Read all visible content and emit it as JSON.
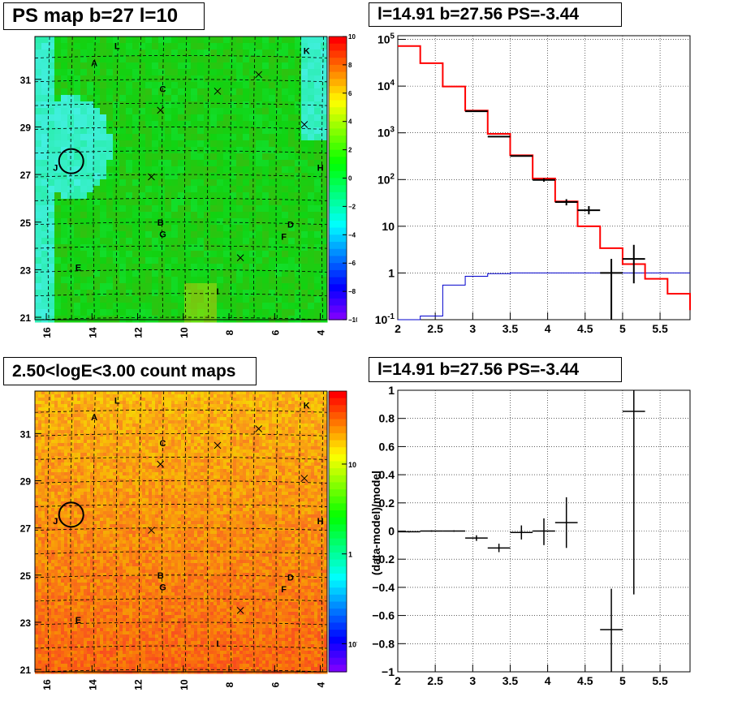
{
  "panels": {
    "ps_map": {
      "title": "PS map b=27 l=10"
    },
    "count_map": {
      "title": "2.50<logE<3.00 count maps"
    },
    "spectrum": {
      "title": "l=14.91 b=27.56 PS=-3.44"
    },
    "residual": {
      "title": "l=14.91 b=27.56 PS=-3.44"
    }
  },
  "chart_data": [
    {
      "type": "heatmap",
      "title": "PS map b=27 l=10",
      "x_ticks": [
        "16",
        "14",
        "12",
        "10",
        "8",
        "6",
        "4"
      ],
      "y_ticks": [
        "31",
        "29",
        "27",
        "25",
        "23",
        "21"
      ],
      "xlim": [
        16.5,
        3.7
      ],
      "ylim": [
        20.9,
        32.8
      ],
      "colorbar": {
        "min": -10,
        "max": 10,
        "ticks": [
          "10",
          "8",
          "6",
          "4",
          "2",
          "0",
          "−2",
          "−4",
          "−6",
          "−8",
          "−10"
        ]
      },
      "source_labels": [
        {
          "text": "L",
          "l": 12.9,
          "b": 32.4
        },
        {
          "text": "A",
          "l": 13.9,
          "b": 31.7
        },
        {
          "text": "K",
          "l": 4.6,
          "b": 32.2
        },
        {
          "text": "C",
          "l": 10.9,
          "b": 30.6
        },
        {
          "text": "J",
          "l": 15.6,
          "b": 27.3
        },
        {
          "text": "H",
          "l": 4.0,
          "b": 27.3
        },
        {
          "text": "B",
          "l": 11.0,
          "b": 25.0
        },
        {
          "text": "G",
          "l": 10.9,
          "b": 24.5
        },
        {
          "text": "D",
          "l": 5.3,
          "b": 24.9
        },
        {
          "text": "F",
          "l": 5.6,
          "b": 24.4
        },
        {
          "text": "E",
          "l": 14.6,
          "b": 23.1
        },
        {
          "text": "I",
          "l": 8.5,
          "b": 22.1
        }
      ],
      "markers": [
        {
          "l": 11.0,
          "b": 29.7
        },
        {
          "l": 8.5,
          "b": 30.5
        },
        {
          "l": 6.7,
          "b": 31.2
        },
        {
          "l": 4.7,
          "b": 29.1
        },
        {
          "l": 11.4,
          "b": 26.9
        },
        {
          "l": 7.5,
          "b": 23.5
        }
      ],
      "circle": {
        "l": 14.91,
        "b": 27.56
      }
    },
    {
      "type": "heatmap",
      "title": "2.50<logE<3.00 count maps",
      "x_ticks": [
        "16",
        "14",
        "12",
        "10",
        "8",
        "6",
        "4"
      ],
      "y_ticks": [
        "31",
        "29",
        "27",
        "25",
        "23",
        "21"
      ],
      "xlim": [
        16.5,
        3.7
      ],
      "ylim": [
        20.9,
        32.8
      ],
      "colorbar": {
        "scale": "log",
        "ticks": [
          "10",
          "1",
          "10^-1"
        ]
      }
    },
    {
      "type": "line",
      "title": "l=14.91 b=27.56 PS=-3.44",
      "x_ticks": [
        "2",
        "2.5",
        "3",
        "3.5",
        "4",
        "4.5",
        "5",
        "5.5"
      ],
      "y_ticks": [
        "10^-1",
        "1",
        "10",
        "10^2",
        "10^3",
        "10^4",
        "10^5"
      ],
      "xlim": [
        2.0,
        5.9
      ],
      "ylim": [
        0.1,
        120000
      ],
      "log_y": true,
      "grid": true,
      "model_edges": [
        2.0,
        2.3,
        2.6,
        2.9,
        3.2,
        3.5,
        3.8,
        4.1,
        4.4,
        4.7,
        5.0,
        5.3,
        5.6,
        5.9
      ],
      "series": [
        {
          "color": "#ff0000",
          "values": [
            72000,
            31000,
            9800,
            3000,
            950,
            330,
            105,
            34,
            10,
            3.4,
            1.55,
            0.75,
            0.36,
            0.16
          ]
        },
        {
          "color": "#0000cc",
          "values": [
            0.1,
            0.12,
            0.55,
            0.85,
            0.97,
            1,
            1,
            1,
            1,
            1,
            1,
            1,
            1,
            1
          ]
        },
        {
          "color": "#000000",
          "points": [
            {
              "x": 3.05,
              "y": 2900,
              "xerr": 0.15,
              "ylo": 2900,
              "yhi": 2900
            },
            {
              "x": 3.35,
              "y": 830,
              "xerr": 0.15,
              "ylo": 830,
              "yhi": 830
            },
            {
              "x": 3.65,
              "y": 320,
              "xerr": 0.15,
              "ylo": 320,
              "yhi": 320
            },
            {
              "x": 3.95,
              "y": 98,
              "xerr": 0.15,
              "ylo": 90,
              "yhi": 106
            },
            {
              "x": 4.25,
              "y": 33,
              "xerr": 0.15,
              "ylo": 28,
              "yhi": 38
            },
            {
              "x": 4.55,
              "y": 22,
              "xerr": 0.15,
              "ylo": 18,
              "yhi": 27
            },
            {
              "x": 4.85,
              "y": 1,
              "xerr": 0.15,
              "ylo": 0.1,
              "yhi": 2
            },
            {
              "x": 5.15,
              "y": 2,
              "xerr": 0.15,
              "ylo": 0.6,
              "yhi": 4
            }
          ]
        }
      ]
    },
    {
      "type": "scatter",
      "title": "l=14.91 b=27.56 PS=-3.44",
      "ylabel": "(data-model)/model",
      "x_ticks": [
        "2",
        "2.5",
        "3",
        "3.5",
        "4",
        "4.5",
        "5",
        "5.5"
      ],
      "y_ticks": [
        "−1",
        "−0.8",
        "−0.6",
        "−0.4",
        "−0.2",
        "0",
        "0.2",
        "0.4",
        "0.6",
        "0.8",
        "1"
      ],
      "xlim": [
        2.0,
        5.9
      ],
      "ylim": [
        -1,
        1
      ],
      "grid": true,
      "points": [
        {
          "x": 2.15,
          "y": -0.005,
          "xerr": 0.15,
          "ylo": -0.01,
          "yhi": 0.0
        },
        {
          "x": 2.45,
          "y": 0.0,
          "xerr": 0.15,
          "ylo": -0.005,
          "yhi": 0.005
        },
        {
          "x": 2.75,
          "y": 0.0,
          "xerr": 0.15,
          "ylo": -0.005,
          "yhi": 0.005
        },
        {
          "x": 3.05,
          "y": -0.05,
          "xerr": 0.15,
          "ylo": -0.07,
          "yhi": -0.03
        },
        {
          "x": 3.35,
          "y": -0.12,
          "xerr": 0.15,
          "ylo": -0.15,
          "yhi": -0.09
        },
        {
          "x": 3.65,
          "y": -0.01,
          "xerr": 0.15,
          "ylo": -0.06,
          "yhi": 0.04
        },
        {
          "x": 3.95,
          "y": 0.0,
          "xerr": 0.15,
          "ylo": -0.1,
          "yhi": 0.09
        },
        {
          "x": 4.25,
          "y": 0.06,
          "xerr": 0.15,
          "ylo": -0.12,
          "yhi": 0.24
        },
        {
          "x": 4.85,
          "y": -0.7,
          "xerr": 0.15,
          "ylo": -1.0,
          "yhi": -0.41
        },
        {
          "x": 5.15,
          "y": 0.85,
          "xerr": 0.15,
          "ylo": -0.45,
          "yhi": 1.0
        }
      ]
    }
  ]
}
